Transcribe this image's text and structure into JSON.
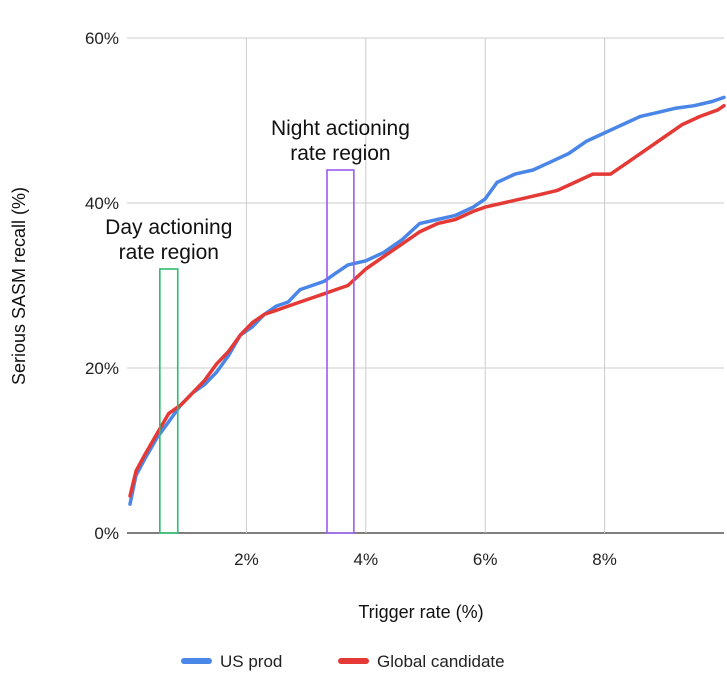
{
  "chart_data": {
    "type": "line",
    "xlabel": "Trigger rate (%)",
    "ylabel": "Serious SASM recall (%)",
    "xlim": [
      0,
      10
    ],
    "ylim": [
      0,
      60
    ],
    "x_ticks": [
      {
        "value": 2,
        "label": "2%"
      },
      {
        "value": 4,
        "label": "4%"
      },
      {
        "value": 6,
        "label": "6%"
      },
      {
        "value": 8,
        "label": "8%"
      }
    ],
    "y_ticks": [
      {
        "value": 0,
        "label": "0%"
      },
      {
        "value": 20,
        "label": "20%"
      },
      {
        "value": 40,
        "label": "40%"
      },
      {
        "value": 60,
        "label": "60%"
      }
    ],
    "grid": true,
    "legend_position": "bottom",
    "series": [
      {
        "name": "US prod",
        "color": "#4a86e8",
        "points": [
          [
            0.05,
            3.5
          ],
          [
            0.15,
            7
          ],
          [
            0.3,
            9
          ],
          [
            0.5,
            11.5
          ],
          [
            0.7,
            13.5
          ],
          [
            0.9,
            15.5
          ],
          [
            1.1,
            17
          ],
          [
            1.3,
            18
          ],
          [
            1.5,
            19.5
          ],
          [
            1.7,
            21.5
          ],
          [
            1.9,
            24
          ],
          [
            2.1,
            25
          ],
          [
            2.3,
            26.5
          ],
          [
            2.5,
            27.5
          ],
          [
            2.7,
            28
          ],
          [
            2.9,
            29.5
          ],
          [
            3.1,
            30
          ],
          [
            3.3,
            30.5
          ],
          [
            3.5,
            31.5
          ],
          [
            3.7,
            32.5
          ],
          [
            4.0,
            33
          ],
          [
            4.3,
            34
          ],
          [
            4.6,
            35.5
          ],
          [
            4.9,
            37.5
          ],
          [
            5.2,
            38
          ],
          [
            5.5,
            38.5
          ],
          [
            5.8,
            39.5
          ],
          [
            6.0,
            40.5
          ],
          [
            6.2,
            42.5
          ],
          [
            6.5,
            43.5
          ],
          [
            6.8,
            44
          ],
          [
            7.1,
            45
          ],
          [
            7.4,
            46
          ],
          [
            7.7,
            47.5
          ],
          [
            8.0,
            48.5
          ],
          [
            8.3,
            49.5
          ],
          [
            8.6,
            50.5
          ],
          [
            8.9,
            51
          ],
          [
            9.2,
            51.5
          ],
          [
            9.5,
            51.8
          ],
          [
            9.8,
            52.3
          ],
          [
            10.0,
            52.8
          ]
        ]
      },
      {
        "name": "Global candidate",
        "color": "#e53935",
        "points": [
          [
            0.05,
            4.5
          ],
          [
            0.15,
            7.5
          ],
          [
            0.3,
            9.5
          ],
          [
            0.5,
            12
          ],
          [
            0.7,
            14.5
          ],
          [
            0.9,
            15.5
          ],
          [
            1.1,
            17
          ],
          [
            1.3,
            18.5
          ],
          [
            1.5,
            20.5
          ],
          [
            1.7,
            22
          ],
          [
            1.9,
            24
          ],
          [
            2.1,
            25.5
          ],
          [
            2.3,
            26.5
          ],
          [
            2.5,
            27
          ],
          [
            2.7,
            27.5
          ],
          [
            2.9,
            28
          ],
          [
            3.1,
            28.5
          ],
          [
            3.3,
            29
          ],
          [
            3.5,
            29.5
          ],
          [
            3.7,
            30
          ],
          [
            4.0,
            32
          ],
          [
            4.3,
            33.5
          ],
          [
            4.6,
            35
          ],
          [
            4.9,
            36.5
          ],
          [
            5.2,
            37.5
          ],
          [
            5.5,
            38
          ],
          [
            5.8,
            39
          ],
          [
            6.0,
            39.5
          ],
          [
            6.3,
            40
          ],
          [
            6.6,
            40.5
          ],
          [
            6.9,
            41
          ],
          [
            7.2,
            41.5
          ],
          [
            7.5,
            42.5
          ],
          [
            7.8,
            43.5
          ],
          [
            8.1,
            43.5
          ],
          [
            8.4,
            45
          ],
          [
            8.7,
            46.5
          ],
          [
            9.0,
            48
          ],
          [
            9.3,
            49.5
          ],
          [
            9.6,
            50.5
          ],
          [
            9.9,
            51.3
          ],
          [
            10.0,
            51.8
          ]
        ]
      }
    ],
    "annotations": [
      {
        "key": "day",
        "text_lines": [
          "Day actioning",
          "rate region"
        ],
        "x_range": [
          0.55,
          0.85
        ],
        "y_range": [
          0,
          32
        ],
        "color": "#2dbd6e"
      },
      {
        "key": "night",
        "text_lines": [
          "Night actioning",
          "rate region"
        ],
        "x_range": [
          3.35,
          3.8
        ],
        "y_range": [
          0,
          44
        ],
        "color": "#9a5cf0"
      }
    ]
  }
}
